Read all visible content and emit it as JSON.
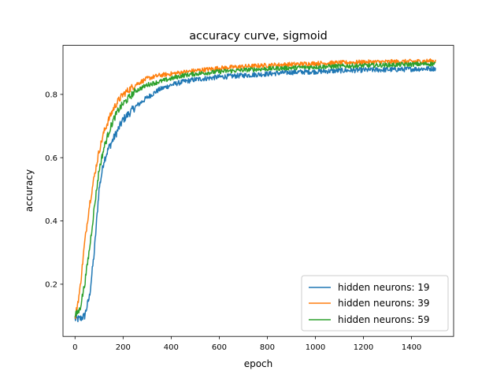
{
  "chart_data": {
    "type": "line",
    "title": "accuracy curve, sigmoid",
    "xlabel": "epoch",
    "ylabel": "accuracy",
    "xlim": [
      -50,
      1575
    ],
    "ylim": [
      0.035,
      0.955
    ],
    "xticks": [
      0,
      200,
      400,
      600,
      800,
      1000,
      1200,
      1400
    ],
    "yticks": [
      0.2,
      0.4,
      0.6,
      0.8
    ],
    "xtick_labels": [
      "0",
      "200",
      "400",
      "600",
      "800",
      "1000",
      "1200",
      "1400"
    ],
    "ytick_labels": [
      "0.2",
      "0.4",
      "0.6",
      "0.8"
    ],
    "grid": false,
    "legend_position": "lower-right",
    "series": [
      {
        "name": "hidden neurons: 19",
        "color": "#1f77b4",
        "noise": 0.008,
        "x": [
          0,
          20,
          40,
          60,
          80,
          100,
          120,
          140,
          160,
          180,
          200,
          250,
          300,
          350,
          400,
          450,
          500,
          600,
          700,
          800,
          900,
          1000,
          1100,
          1200,
          1300,
          1400,
          1500
        ],
        "y": [
          0.09,
          0.09,
          0.1,
          0.16,
          0.3,
          0.5,
          0.59,
          0.63,
          0.66,
          0.69,
          0.72,
          0.76,
          0.79,
          0.815,
          0.83,
          0.84,
          0.847,
          0.855,
          0.86,
          0.865,
          0.87,
          0.872,
          0.875,
          0.877,
          0.878,
          0.88,
          0.882
        ]
      },
      {
        "name": "hidden neurons: 39",
        "color": "#ff7f0e",
        "noise": 0.007,
        "x": [
          0,
          20,
          40,
          60,
          80,
          100,
          120,
          140,
          160,
          180,
          200,
          250,
          300,
          350,
          400,
          450,
          500,
          600,
          700,
          800,
          900,
          1000,
          1100,
          1200,
          1300,
          1400,
          1500
        ],
        "y": [
          0.09,
          0.18,
          0.33,
          0.45,
          0.54,
          0.62,
          0.68,
          0.72,
          0.755,
          0.78,
          0.8,
          0.83,
          0.85,
          0.86,
          0.865,
          0.87,
          0.875,
          0.883,
          0.888,
          0.892,
          0.895,
          0.898,
          0.9,
          0.902,
          0.903,
          0.904,
          0.906
        ]
      },
      {
        "name": "hidden neurons: 59",
        "color": "#2ca02c",
        "noise": 0.007,
        "x": [
          0,
          20,
          40,
          60,
          80,
          100,
          120,
          140,
          160,
          180,
          200,
          250,
          300,
          350,
          400,
          450,
          500,
          600,
          700,
          800,
          900,
          1000,
          1100,
          1200,
          1300,
          1400,
          1500
        ],
        "y": [
          0.1,
          0.12,
          0.2,
          0.31,
          0.44,
          0.56,
          0.63,
          0.68,
          0.72,
          0.75,
          0.77,
          0.81,
          0.83,
          0.84,
          0.85,
          0.86,
          0.865,
          0.872,
          0.877,
          0.881,
          0.884,
          0.887,
          0.889,
          0.891,
          0.893,
          0.895,
          0.897
        ]
      }
    ]
  }
}
